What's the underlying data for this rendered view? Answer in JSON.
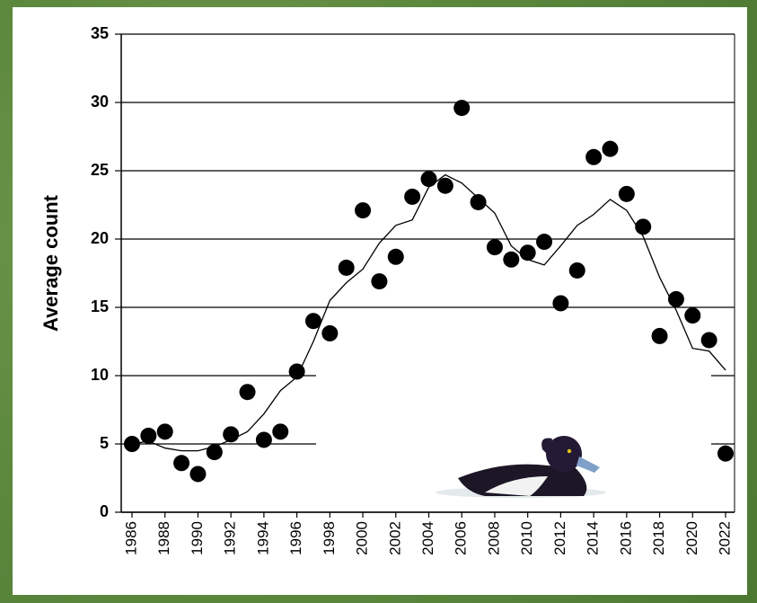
{
  "chart_data": {
    "type": "scatter",
    "y_label": "Average count",
    "x": [
      1986,
      1987,
      1988,
      1989,
      1990,
      1991,
      1992,
      1993,
      1994,
      1995,
      1996,
      1997,
      1998,
      1999,
      2000,
      2001,
      2002,
      2003,
      2004,
      2005,
      2006,
      2007,
      2008,
      2009,
      2010,
      2011,
      2012,
      2013,
      2014,
      2015,
      2016,
      2017,
      2018,
      2019,
      2020,
      2021,
      2022
    ],
    "series": [
      {
        "type": "scatter",
        "color": "#000000",
        "values": [
          5.0,
          5.6,
          5.9,
          3.6,
          2.8,
          4.4,
          5.7,
          8.8,
          5.3,
          5.9,
          10.3,
          14.0,
          13.1,
          17.9,
          22.1,
          16.9,
          18.7,
          23.1,
          24.4,
          23.9,
          29.6,
          22.7,
          19.4,
          18.5,
          19.0,
          19.8,
          15.3,
          17.7,
          26.0,
          26.6,
          23.3,
          20.9,
          12.9,
          15.6,
          14.4,
          12.6,
          4.3
        ]
      },
      {
        "type": "line",
        "color": "#000000",
        "values": [
          5.0,
          5.2,
          4.7,
          4.5,
          4.5,
          4.8,
          5.3,
          5.9,
          7.2,
          8.9,
          9.9,
          12.5,
          15.5,
          16.8,
          17.8,
          19.7,
          21.0,
          21.4,
          23.8,
          24.7,
          24.1,
          23.0,
          21.9,
          19.5,
          18.5,
          18.1,
          19.5,
          21.0,
          21.8,
          22.9,
          22.1,
          20.2,
          17.2,
          14.8,
          12.0,
          11.8,
          10.4
        ]
      }
    ],
    "xlim": [
      1986,
      2022
    ],
    "xticks": [
      1986,
      1988,
      1990,
      1992,
      1994,
      1996,
      1998,
      2000,
      2002,
      2004,
      2006,
      2008,
      2010,
      2012,
      2014,
      2016,
      2018,
      2020,
      2022
    ],
    "ylim": [
      0,
      35
    ],
    "yticks": [
      0,
      5,
      10,
      15,
      20,
      25,
      30,
      35
    ],
    "grid": true
  }
}
